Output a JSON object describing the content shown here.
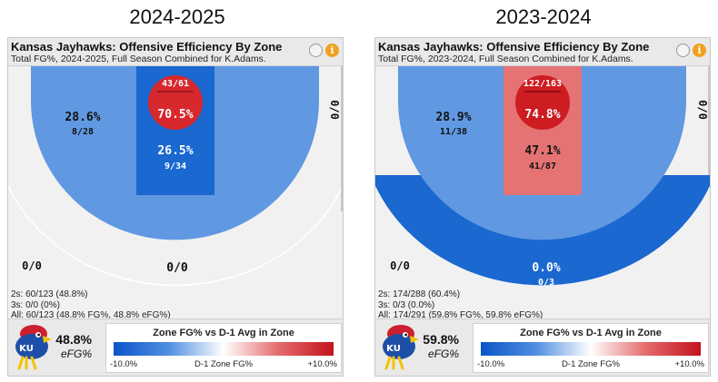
{
  "panels": [
    {
      "season": "2024-2025",
      "title": "Kansas Jayhawks: Offensive Efficiency By Zone",
      "subtitle": "Total FG%, 2024-2025, Full Season Combined for K.Adams.",
      "zones": {
        "rim": {
          "pct": "70.5%",
          "made_att": "43/61",
          "color": "#d7282d"
        },
        "paint": {
          "pct": "26.5%",
          "made_att": "9/34",
          "color": "#1a68d0"
        },
        "midrange": {
          "pct": "28.6%",
          "made_att": "8/28",
          "color": "#6098e2"
        },
        "corner_right": {
          "pct": "0/0"
        },
        "corner_left": {
          "pct": "0/0"
        },
        "three_top": {
          "pct": "0/0",
          "made_att": "",
          "color": "#f1f1f1"
        }
      },
      "totals": {
        "twos": "2s: 60/123 (48.8%)",
        "threes": "3s: 0/0 (0%)",
        "all": "All: 60/123 (48.8% FG%, 48.8% eFG%)"
      },
      "efg_value": "48.8%",
      "efg_label": "eFG%"
    },
    {
      "season": "2023-2024",
      "title": "Kansas Jayhawks: Offensive Efficiency By Zone",
      "subtitle": "Total FG%, 2023-2024, Full Season Combined for K.Adams.",
      "zones": {
        "rim": {
          "pct": "74.8%",
          "made_att": "122/163",
          "color": "#cd1c22"
        },
        "paint": {
          "pct": "47.1%",
          "made_att": "41/87",
          "color": "#e57373"
        },
        "midrange": {
          "pct": "28.9%",
          "made_att": "11/38",
          "color": "#6098e2"
        },
        "corner_right": {
          "pct": "0/0"
        },
        "corner_left": {
          "pct": "0/0"
        },
        "three_top": {
          "pct": "0.0%",
          "made_att": "0/3",
          "color": "#1a68d0"
        }
      },
      "totals": {
        "twos": "2s: 174/288 (60.4%)",
        "threes": "3s: 0/3 (0.0%)",
        "all": "All: 174/291 (59.8% FG%, 59.8% eFG%)"
      },
      "efg_value": "59.8%",
      "efg_label": "eFG%"
    }
  ],
  "legend": {
    "title": "Zone FG% vs D-1 Avg in Zone",
    "min": "-10.0%",
    "mid": "D-1 Zone FG%",
    "max": "+10.0%"
  },
  "logo_text": "KU",
  "chart_data": [
    {
      "type": "heatmap",
      "title": "Kansas Jayhawks: Offensive Efficiency By Zone",
      "subtitle": "Total FG%, 2024-2025, Full Season Combined for K.Adams.",
      "season": "2024-2025",
      "zones": [
        {
          "zone": "rim",
          "fg_pct": 70.5,
          "made": 43,
          "attempts": 61
        },
        {
          "zone": "paint",
          "fg_pct": 26.5,
          "made": 9,
          "attempts": 34
        },
        {
          "zone": "midrange",
          "fg_pct": 28.6,
          "made": 8,
          "attempts": 28
        },
        {
          "zone": "corner_three_right",
          "made": 0,
          "attempts": 0
        },
        {
          "zone": "corner_three_left",
          "made": 0,
          "attempts": 0
        },
        {
          "zone": "above_break_three",
          "made": 0,
          "attempts": 0
        }
      ],
      "color_scale": {
        "min": -10.0,
        "max": 10.0,
        "label": "D-1 Zone FG%"
      }
    },
    {
      "type": "heatmap",
      "title": "Kansas Jayhawks: Offensive Efficiency By Zone",
      "subtitle": "Total FG%, 2023-2024, Full Season Combined for K.Adams.",
      "season": "2023-2024",
      "zones": [
        {
          "zone": "rim",
          "fg_pct": 74.8,
          "made": 122,
          "attempts": 163
        },
        {
          "zone": "paint",
          "fg_pct": 47.1,
          "made": 41,
          "attempts": 87
        },
        {
          "zone": "midrange",
          "fg_pct": 28.9,
          "made": 11,
          "attempts": 38
        },
        {
          "zone": "corner_three_right",
          "made": 0,
          "attempts": 0
        },
        {
          "zone": "corner_three_left",
          "made": 0,
          "attempts": 0
        },
        {
          "zone": "above_break_three",
          "fg_pct": 0.0,
          "made": 0,
          "attempts": 3
        }
      ],
      "color_scale": {
        "min": -10.0,
        "max": 10.0,
        "label": "D-1 Zone FG%"
      }
    }
  ]
}
